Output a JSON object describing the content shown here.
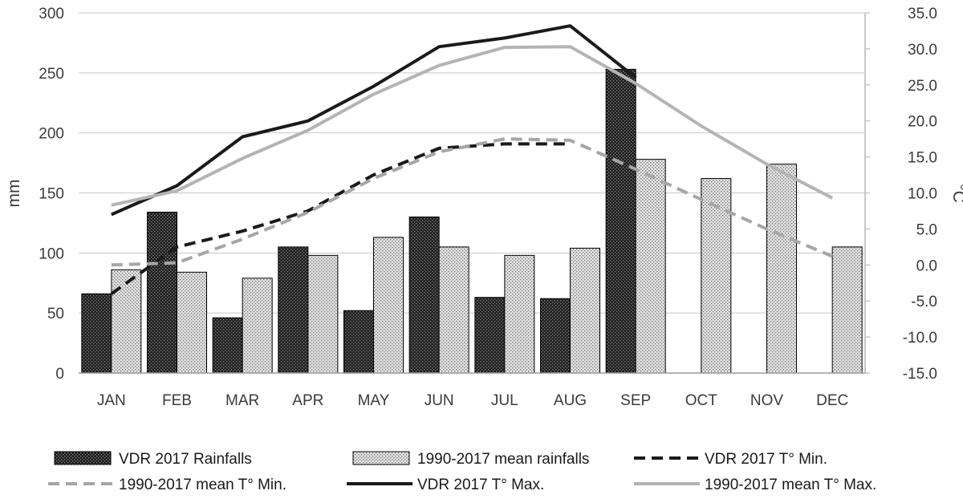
{
  "chart_data": {
    "type": "bar",
    "categories": [
      "JAN",
      "FEB",
      "MAR",
      "APR",
      "MAY",
      "JUN",
      "JUL",
      "AUG",
      "SEP",
      "OCT",
      "NOV",
      "DEC"
    ],
    "ylabel": "mm",
    "y2label": "°C",
    "ylim": [
      0,
      300
    ],
    "y2lim": [
      -15,
      35
    ],
    "y_ticks": [
      "0",
      "50",
      "100",
      "150",
      "200",
      "250",
      "300"
    ],
    "y2_ticks": [
      "-15.0",
      "-10.0",
      "-5.0",
      "0.0",
      "5.0",
      "10.0",
      "15.0",
      "20.0",
      "25.0",
      "30.0",
      "35.0"
    ],
    "grid": true,
    "legend_position": "bottom",
    "bar_series": [
      {
        "name": "VDR 2017 Rainfalls",
        "axis": "left",
        "pattern": "dark",
        "values": [
          66,
          134,
          46,
          105,
          52,
          130,
          63,
          62,
          253,
          null,
          null,
          null
        ]
      },
      {
        "name": "1990-2017 mean rainfalls",
        "axis": "left",
        "pattern": "light",
        "values": [
          86,
          84,
          79,
          98,
          113,
          105,
          98,
          104,
          178,
          162,
          174,
          105
        ]
      }
    ],
    "line_series": [
      {
        "name": "VDR 2017 T° Min.",
        "axis": "right",
        "color": "#1a1a1a",
        "dash": true,
        "values": [
          -4.0,
          2.5,
          4.7,
          7.5,
          12.5,
          16.2,
          16.8,
          16.8,
          null,
          null,
          null,
          null
        ]
      },
      {
        "name": "1990-2017 mean T° Min.",
        "axis": "right",
        "color": "#a6a6a6",
        "dash": true,
        "values": [
          0.0,
          0.3,
          3.6,
          7.3,
          12.0,
          15.7,
          17.5,
          17.3,
          13.3,
          9.1,
          5.0,
          1.2
        ]
      },
      {
        "name": "VDR 2017 T° Max.",
        "axis": "right",
        "color": "#1a1a1a",
        "dash": false,
        "values": [
          7.0,
          11.0,
          17.8,
          20.0,
          24.8,
          30.3,
          31.5,
          33.2,
          26.0,
          null,
          null,
          null
        ]
      },
      {
        "name": "1990-2017 mean T° Max.",
        "axis": "right",
        "color": "#b4b4b4",
        "dash": false,
        "values": [
          8.3,
          10.3,
          14.8,
          18.7,
          23.7,
          27.7,
          30.2,
          30.3,
          25.2,
          19.3,
          14.0,
          9.3
        ]
      }
    ]
  }
}
